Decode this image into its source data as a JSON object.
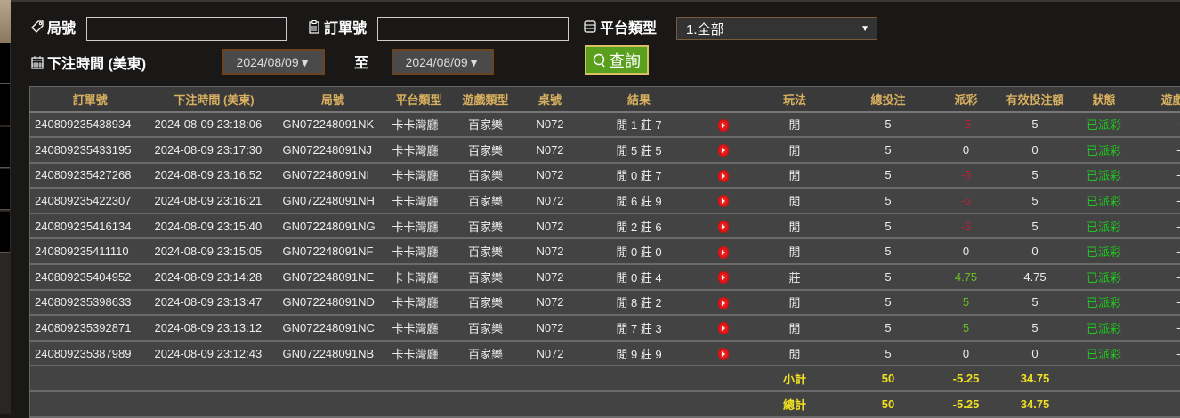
{
  "filters": {
    "round_label": "局號",
    "round_value": "",
    "order_label": "訂單號",
    "order_value": "",
    "platform_label": "平台類型",
    "platform_selected": "1.全部",
    "time_label": "下注時間 (美東)",
    "date_from": "2024/08/09▼",
    "to_label": "至",
    "date_to": "2024/08/09▼",
    "query_label": "查詢"
  },
  "table": {
    "headers": [
      "訂單號",
      "下注時間 (美東)",
      "局號",
      "平台類型",
      "遊戲類型",
      "桌號",
      "結果",
      "",
      "玩法",
      "總投注",
      "派彩",
      "有效投注額",
      "狀態",
      "遊戲桌"
    ],
    "rows": [
      {
        "order": "240809235438934",
        "time": "2024-08-09 23:18:06",
        "round": "GN072248091NK",
        "platform": "卡卡灣廳",
        "game": "百家樂",
        "table": "N072",
        "result": "閒 1 莊 7",
        "play": "閒",
        "bet": "5",
        "payout": "-5",
        "payout_type": "neg",
        "valid": "5",
        "status": "已派彩",
        "extra": "-"
      },
      {
        "order": "240809235433195",
        "time": "2024-08-09 23:17:30",
        "round": "GN072248091NJ",
        "platform": "卡卡灣廳",
        "game": "百家樂",
        "table": "N072",
        "result": "閒 5 莊 5",
        "play": "閒",
        "bet": "5",
        "payout": "0",
        "payout_type": "zero",
        "valid": "0",
        "status": "已派彩",
        "extra": "-"
      },
      {
        "order": "240809235427268",
        "time": "2024-08-09 23:16:52",
        "round": "GN072248091NI",
        "platform": "卡卡灣廳",
        "game": "百家樂",
        "table": "N072",
        "result": "閒 0 莊 7",
        "play": "閒",
        "bet": "5",
        "payout": "-5",
        "payout_type": "neg",
        "valid": "5",
        "status": "已派彩",
        "extra": "-"
      },
      {
        "order": "240809235422307",
        "time": "2024-08-09 23:16:21",
        "round": "GN072248091NH",
        "platform": "卡卡灣廳",
        "game": "百家樂",
        "table": "N072",
        "result": "閒 6 莊 9",
        "play": "閒",
        "bet": "5",
        "payout": "-5",
        "payout_type": "neg",
        "valid": "5",
        "status": "已派彩",
        "extra": "-"
      },
      {
        "order": "240809235416134",
        "time": "2024-08-09 23:15:40",
        "round": "GN072248091NG",
        "platform": "卡卡灣廳",
        "game": "百家樂",
        "table": "N072",
        "result": "閒 2 莊 6",
        "play": "閒",
        "bet": "5",
        "payout": "-5",
        "payout_type": "neg",
        "valid": "5",
        "status": "已派彩",
        "extra": "-"
      },
      {
        "order": "240809235411110",
        "time": "2024-08-09 23:15:05",
        "round": "GN072248091NF",
        "platform": "卡卡灣廳",
        "game": "百家樂",
        "table": "N072",
        "result": "閒 0 莊 0",
        "play": "閒",
        "bet": "5",
        "payout": "0",
        "payout_type": "zero",
        "valid": "0",
        "status": "已派彩",
        "extra": "-"
      },
      {
        "order": "240809235404952",
        "time": "2024-08-09 23:14:28",
        "round": "GN072248091NE",
        "platform": "卡卡灣廳",
        "game": "百家樂",
        "table": "N072",
        "result": "閒 0 莊 4",
        "play": "莊",
        "bet": "5",
        "payout": "4.75",
        "payout_type": "pos",
        "valid": "4.75",
        "status": "已派彩",
        "extra": "-"
      },
      {
        "order": "240809235398633",
        "time": "2024-08-09 23:13:47",
        "round": "GN072248091ND",
        "platform": "卡卡灣廳",
        "game": "百家樂",
        "table": "N072",
        "result": "閒 8 莊 2",
        "play": "閒",
        "bet": "5",
        "payout": "5",
        "payout_type": "pos",
        "valid": "5",
        "status": "已派彩",
        "extra": "-"
      },
      {
        "order": "240809235392871",
        "time": "2024-08-09 23:13:12",
        "round": "GN072248091NC",
        "platform": "卡卡灣廳",
        "game": "百家樂",
        "table": "N072",
        "result": "閒 7 莊 3",
        "play": "閒",
        "bet": "5",
        "payout": "5",
        "payout_type": "pos",
        "valid": "5",
        "status": "已派彩",
        "extra": "-"
      },
      {
        "order": "240809235387989",
        "time": "2024-08-09 23:12:43",
        "round": "GN072248091NB",
        "platform": "卡卡灣廳",
        "game": "百家樂",
        "table": "N072",
        "result": "閒 9 莊 9",
        "play": "閒",
        "bet": "5",
        "payout": "0",
        "payout_type": "zero",
        "valid": "0",
        "status": "已派彩",
        "extra": "-"
      }
    ],
    "subtotal": {
      "label": "小計",
      "bet": "50",
      "payout": "-5.25",
      "valid": "34.75"
    },
    "total": {
      "label": "總計",
      "bet": "50",
      "payout": "-5.25",
      "valid": "34.75"
    }
  },
  "colors": {
    "header_text": "#d8b060",
    "negative": "#c0203a",
    "positive": "#6ac020",
    "status": "#1ec81e",
    "summary": "#f0e020",
    "query_button": "#5aa01e"
  }
}
